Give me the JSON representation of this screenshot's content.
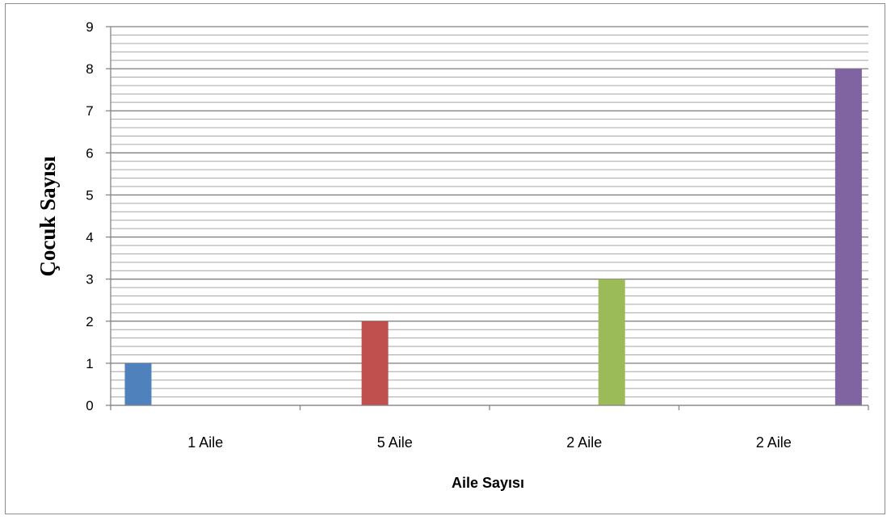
{
  "chart_data": {
    "type": "bar",
    "title": "",
    "xlabel": "Aile Sayısı",
    "ylabel": "Çocuk Sayısı",
    "categories": [
      "1 Aile",
      "5 Aile",
      "2 Aile",
      "2 Aile"
    ],
    "values": [
      1,
      2,
      3,
      8
    ],
    "colors": [
      "#4f81bd",
      "#c0504d",
      "#9bbb59",
      "#8064a2"
    ],
    "ylim": [
      0,
      9
    ],
    "yticks": [
      0,
      1,
      2,
      3,
      4,
      5,
      6,
      7,
      8,
      9
    ],
    "grid": true,
    "minor_grid": true,
    "legend": "none"
  }
}
